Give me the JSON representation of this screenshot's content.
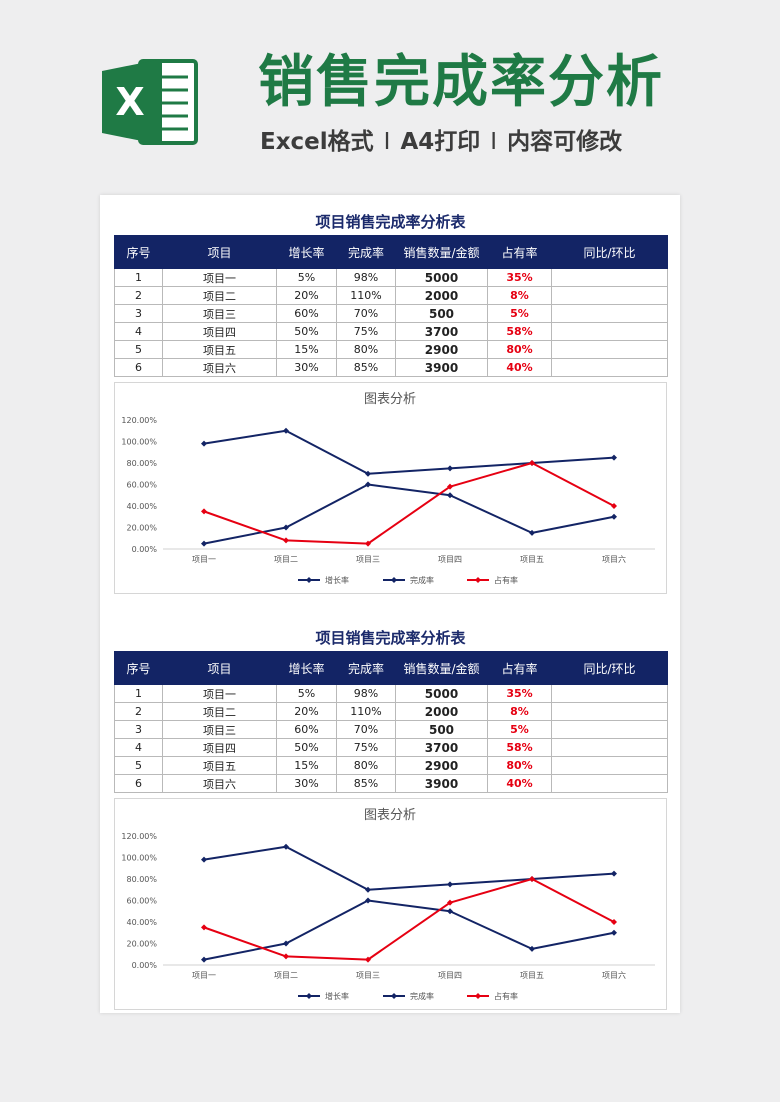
{
  "header": {
    "title": "销售完成率分析",
    "features": [
      "Excel格式",
      "A4打印",
      "内容可修改"
    ],
    "separator": "I"
  },
  "colors": {
    "navy": "#132465",
    "red": "#e60012",
    "green": "#1f7a45"
  },
  "logo": {
    "letter": "X"
  },
  "blocks": [
    {
      "title": "项目销售完成率分析表",
      "headers": [
        "序号",
        "项目",
        "增长率",
        "完成率",
        "销售数量/金额",
        "占有率",
        "同比/环比"
      ],
      "rows": [
        [
          "1",
          "项目一",
          "5%",
          "98%",
          "5000",
          "35%",
          ""
        ],
        [
          "2",
          "项目二",
          "20%",
          "110%",
          "2000",
          "8%",
          ""
        ],
        [
          "3",
          "项目三",
          "60%",
          "70%",
          "500",
          "5%",
          ""
        ],
        [
          "4",
          "项目四",
          "50%",
          "75%",
          "3700",
          "58%",
          ""
        ],
        [
          "5",
          "项目五",
          "15%",
          "80%",
          "2900",
          "80%",
          ""
        ],
        [
          "6",
          "项目六",
          "30%",
          "85%",
          "3900",
          "40%",
          ""
        ]
      ]
    },
    {
      "title": "项目销售完成率分析表",
      "headers": [
        "序号",
        "项目",
        "增长率",
        "完成率",
        "销售数量/金额",
        "占有率",
        "同比/环比"
      ],
      "rows": [
        [
          "1",
          "项目一",
          "5%",
          "98%",
          "5000",
          "35%",
          ""
        ],
        [
          "2",
          "项目二",
          "20%",
          "110%",
          "2000",
          "8%",
          ""
        ],
        [
          "3",
          "项目三",
          "60%",
          "70%",
          "500",
          "5%",
          ""
        ],
        [
          "4",
          "项目四",
          "50%",
          "75%",
          "3700",
          "58%",
          ""
        ],
        [
          "5",
          "项目五",
          "15%",
          "80%",
          "2900",
          "80%",
          ""
        ],
        [
          "6",
          "项目六",
          "30%",
          "85%",
          "3900",
          "40%",
          ""
        ]
      ]
    }
  ],
  "chart_data": [
    {
      "type": "line",
      "title": "图表分析",
      "categories": [
        "项目一",
        "项目二",
        "项目三",
        "项目四",
        "项目五",
        "项目六"
      ],
      "yticks": [
        "0.00%",
        "20.00%",
        "40.00%",
        "60.00%",
        "80.00%",
        "100.00%",
        "120.00%"
      ],
      "ylim": [
        0,
        120
      ],
      "legend_position": "bottom",
      "series": [
        {
          "name": "增长率",
          "color": "#132465",
          "values": [
            5,
            20,
            60,
            50,
            15,
            30
          ]
        },
        {
          "name": "完成率",
          "color": "#132465",
          "values": [
            98,
            110,
            70,
            75,
            80,
            85
          ]
        },
        {
          "name": "占有率",
          "color": "#e60012",
          "values": [
            35,
            8,
            5,
            58,
            80,
            40
          ]
        }
      ]
    },
    {
      "type": "line",
      "title": "图表分析",
      "categories": [
        "项目一",
        "项目二",
        "项目三",
        "项目四",
        "项目五",
        "项目六"
      ],
      "yticks": [
        "0.00%",
        "20.00%",
        "40.00%",
        "60.00%",
        "80.00%",
        "100.00%",
        "120.00%"
      ],
      "ylim": [
        0,
        120
      ],
      "legend_position": "bottom",
      "series": [
        {
          "name": "增长率",
          "color": "#132465",
          "values": [
            5,
            20,
            60,
            50,
            15,
            30
          ]
        },
        {
          "name": "完成率",
          "color": "#132465",
          "values": [
            98,
            110,
            70,
            75,
            80,
            85
          ]
        },
        {
          "name": "占有率",
          "color": "#e60012",
          "values": [
            35,
            8,
            5,
            58,
            80,
            40
          ]
        }
      ]
    }
  ]
}
